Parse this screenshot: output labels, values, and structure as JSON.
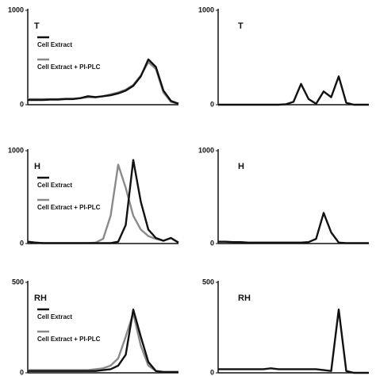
{
  "chart_data": [
    {
      "type": "line",
      "label": "T",
      "xlim": [
        0,
        100
      ],
      "ylim": [
        0,
        1000
      ],
      "yticks": [
        0,
        1000
      ],
      "x": [
        0,
        5,
        10,
        15,
        20,
        25,
        30,
        35,
        40,
        45,
        50,
        55,
        60,
        65,
        70,
        75,
        80,
        85,
        90,
        95,
        100
      ],
      "series": [
        {
          "name": "Cell Extract",
          "color": "#111111",
          "values": [
            50,
            50,
            50,
            55,
            55,
            60,
            60,
            70,
            90,
            80,
            90,
            100,
            120,
            150,
            200,
            300,
            480,
            400,
            150,
            40,
            10
          ]
        },
        {
          "name": "Cell Extract + PI-PLC",
          "color": "#8a8a8a",
          "values": [
            60,
            60,
            60,
            60,
            60,
            65,
            65,
            70,
            80,
            80,
            90,
            110,
            130,
            160,
            210,
            310,
            450,
            380,
            130,
            30,
            10
          ]
        }
      ]
    },
    {
      "type": "line",
      "label": "T",
      "xlim": [
        0,
        100
      ],
      "ylim": [
        0,
        1000
      ],
      "yticks": [
        0,
        1000
      ],
      "x": [
        0,
        5,
        10,
        15,
        20,
        25,
        30,
        35,
        40,
        45,
        50,
        55,
        60,
        65,
        70,
        75,
        80,
        85,
        90,
        95,
        100
      ],
      "series": [
        {
          "color": "#111111",
          "values": [
            0,
            0,
            0,
            0,
            0,
            0,
            0,
            0,
            0,
            5,
            30,
            220,
            60,
            10,
            140,
            80,
            300,
            20,
            0,
            0,
            0
          ]
        }
      ]
    },
    {
      "type": "line",
      "label": "H",
      "xlim": [
        0,
        100
      ],
      "ylim": [
        0,
        1000
      ],
      "yticks": [
        0,
        1000
      ],
      "x": [
        0,
        5,
        10,
        15,
        20,
        25,
        30,
        35,
        40,
        45,
        50,
        55,
        60,
        65,
        70,
        75,
        80,
        85,
        90,
        95,
        100
      ],
      "series": [
        {
          "name": "Cell Extract",
          "color": "#111111",
          "values": [
            20,
            10,
            5,
            5,
            5,
            5,
            5,
            5,
            5,
            5,
            5,
            5,
            20,
            200,
            900,
            450,
            150,
            60,
            30,
            60,
            10
          ]
        },
        {
          "name": "Cell Extract + PI-PLC",
          "color": "#8a8a8a",
          "values": [
            20,
            10,
            5,
            5,
            5,
            5,
            5,
            5,
            5,
            10,
            50,
            300,
            850,
            600,
            300,
            150,
            80,
            50,
            30,
            60,
            10
          ]
        }
      ]
    },
    {
      "type": "line",
      "label": "H",
      "xlim": [
        0,
        100
      ],
      "ylim": [
        0,
        1000
      ],
      "yticks": [
        0,
        1000
      ],
      "x": [
        0,
        5,
        10,
        15,
        20,
        25,
        30,
        35,
        40,
        45,
        50,
        55,
        60,
        65,
        70,
        75,
        80,
        85,
        90,
        95,
        100
      ],
      "series": [
        {
          "color": "#111111",
          "values": [
            20,
            20,
            15,
            15,
            10,
            10,
            10,
            10,
            10,
            10,
            10,
            10,
            15,
            50,
            330,
            120,
            10,
            5,
            5,
            5,
            5
          ]
        }
      ]
    },
    {
      "type": "line",
      "label": "RH",
      "xlim": [
        0,
        100
      ],
      "ylim": [
        0,
        500
      ],
      "yticks": [
        0,
        500
      ],
      "x": [
        0,
        5,
        10,
        15,
        20,
        25,
        30,
        35,
        40,
        45,
        50,
        55,
        60,
        65,
        70,
        75,
        80,
        85,
        90,
        95,
        100
      ],
      "series": [
        {
          "name": "Cell Extract",
          "color": "#111111",
          "values": [
            10,
            10,
            10,
            10,
            10,
            10,
            10,
            10,
            10,
            10,
            15,
            20,
            40,
            100,
            350,
            200,
            60,
            10,
            5,
            5,
            5
          ]
        },
        {
          "name": "Cell Extract + PI-PLC",
          "color": "#8a8a8a",
          "values": [
            15,
            15,
            15,
            15,
            15,
            15,
            15,
            15,
            15,
            20,
            25,
            40,
            80,
            200,
            330,
            150,
            40,
            10,
            5,
            5,
            5
          ]
        }
      ]
    },
    {
      "type": "line",
      "label": "RH",
      "xlim": [
        0,
        100
      ],
      "ylim": [
        0,
        500
      ],
      "yticks": [
        0,
        500
      ],
      "x": [
        0,
        5,
        10,
        15,
        20,
        25,
        30,
        35,
        40,
        45,
        50,
        55,
        60,
        65,
        70,
        75,
        80,
        85,
        90,
        95,
        100
      ],
      "series": [
        {
          "color": "#111111",
          "values": [
            20,
            20,
            20,
            20,
            20,
            20,
            20,
            25,
            20,
            20,
            20,
            20,
            20,
            20,
            15,
            10,
            350,
            10,
            0,
            0,
            0
          ]
        }
      ]
    }
  ]
}
